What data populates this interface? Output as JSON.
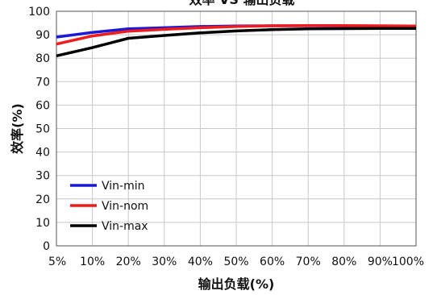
{
  "chart_data": {
    "type": "line",
    "title": "效率 VS 输出负载",
    "xlabel": "输出负载(%)",
    "ylabel": "效率(%)",
    "categories": [
      "5%",
      "10%",
      "20%",
      "30%",
      "40%",
      "50%",
      "60%",
      "70%",
      "80%",
      "90%",
      "100%"
    ],
    "ylim": [
      0,
      100
    ],
    "yticks": [
      0,
      10,
      20,
      30,
      40,
      50,
      60,
      70,
      80,
      90,
      100
    ],
    "grid": true,
    "legend_position": "lower-left",
    "series": [
      {
        "name": "Vin-min",
        "color": "#1a1ad6",
        "values": [
          89,
          91,
          92.5,
          93,
          93.5,
          93.7,
          93.8,
          93.8,
          93.7,
          93.6,
          93.5
        ]
      },
      {
        "name": "Vin-nom",
        "color": "#ee1c1c",
        "values": [
          86,
          89.5,
          91.5,
          92.3,
          93,
          93.5,
          93.8,
          93.9,
          93.9,
          93.8,
          93.7
        ]
      },
      {
        "name": "Vin-max",
        "color": "#000000",
        "values": [
          81,
          84.5,
          88.5,
          89.7,
          90.8,
          91.6,
          92.2,
          92.5,
          92.6,
          92.7,
          92.7
        ]
      }
    ]
  }
}
